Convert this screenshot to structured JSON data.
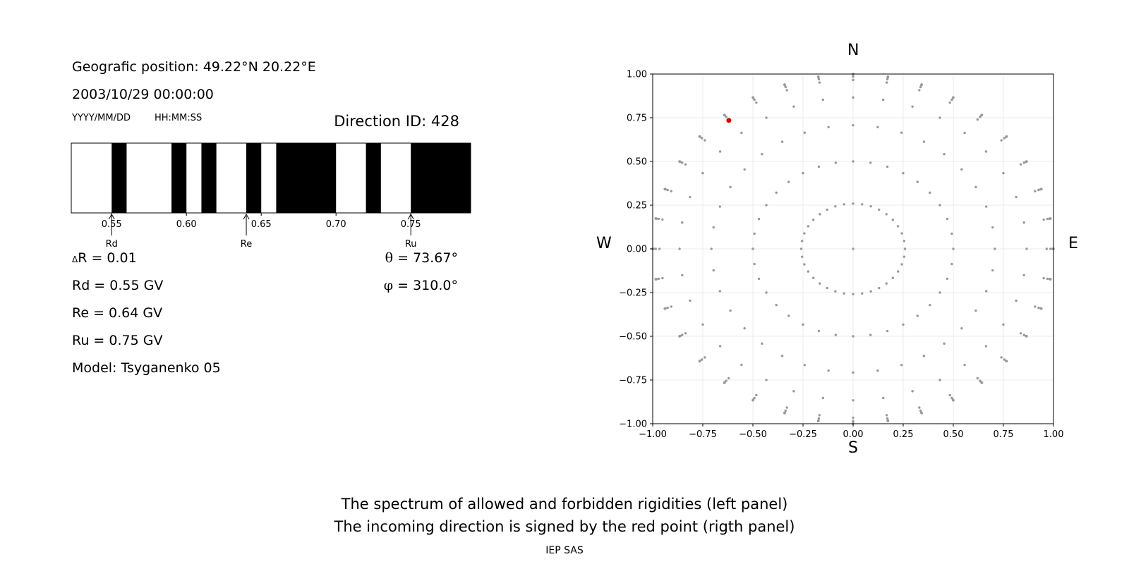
{
  "info": {
    "geo_position": "Geografic position: 49.22°N 20.22°E",
    "datetime": "2003/10/29 00:00:00",
    "date_format": "YYYY/MM/DD",
    "time_format": "HH:MM:SS",
    "direction_id": "Direction ID: 428"
  },
  "params": {
    "delta_symbol": "Δ",
    "delta_r": "R = 0.01",
    "rd": "Rd = 0.55 GV",
    "re": "Re = 0.64 GV",
    "ru": "Ru = 0.75 GV",
    "model": "Model: Tsyganenko 05",
    "theta_symbol": "θ",
    "theta": " = 73.67°",
    "phi_symbol": "φ",
    "phi": " = 310.0°"
  },
  "compass": {
    "n": "N",
    "s": "S",
    "w": "W",
    "e": "E"
  },
  "caption": {
    "line1": "The spectrum of allowed and forbidden rigidities (left panel)",
    "line2": "The incoming direction is signed by the red point (rigth panel)",
    "credit": "IEP SAS"
  },
  "chart_data": [
    {
      "type": "spectrum",
      "xlim": [
        0.523,
        0.79
      ],
      "ticks": [
        0.55,
        0.6,
        0.65,
        0.7,
        0.75
      ],
      "tick_labels": [
        "0.55",
        "0.60",
        "0.65",
        "0.70",
        "0.75"
      ],
      "forbidden_intervals": [
        [
          0.55,
          0.56
        ],
        [
          0.59,
          0.6
        ],
        [
          0.61,
          0.62
        ],
        [
          0.64,
          0.65
        ],
        [
          0.66,
          0.7
        ],
        [
          0.72,
          0.73
        ],
        [
          0.75,
          0.79
        ]
      ],
      "markers": [
        {
          "name": "Rd",
          "value": 0.55
        },
        {
          "name": "Re",
          "value": 0.64
        },
        {
          "name": "Ru",
          "value": 0.75
        }
      ],
      "colors": {
        "forbidden": "#000000",
        "allowed": "#ffffff"
      }
    },
    {
      "type": "scatter",
      "xlim": [
        -1,
        1
      ],
      "ylim": [
        -1,
        1
      ],
      "ticks": [
        -1,
        -0.75,
        -0.5,
        -0.25,
        0,
        0.25,
        0.5,
        0.75,
        1
      ],
      "xtick_labels": [
        "−1.00",
        "−0.75",
        "−0.50",
        "−0.25",
        "0.00",
        "0.25",
        "0.50",
        "0.75",
        "1.00"
      ],
      "ytick_labels": [
        "−1.00",
        "−0.75",
        "−0.50",
        "−0.25",
        "0.00",
        "0.25",
        "0.50",
        "0.75",
        "1.00"
      ],
      "grid": true,
      "grid_theta_deg": [
        0,
        15,
        30,
        45,
        60,
        75,
        80,
        85,
        90
      ],
      "grid_phi_step_deg": 10,
      "highlight": {
        "x": -0.62,
        "y": 0.735
      },
      "colors": {
        "points": "#999999",
        "highlight": "#e00000",
        "grid": "#ebebeb"
      }
    }
  ]
}
